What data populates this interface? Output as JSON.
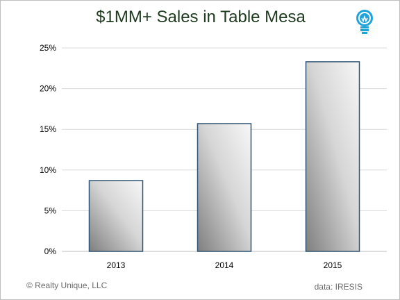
{
  "chart_data": {
    "type": "bar",
    "title": "$1MM+ Sales in Table Mesa",
    "categories": [
      "2013",
      "2014",
      "2015"
    ],
    "values": [
      8.7,
      15.7,
      23.3
    ],
    "ylim": [
      0,
      25
    ],
    "yticks": [
      0,
      5,
      10,
      15,
      20,
      25
    ],
    "ytick_labels": [
      "0%",
      "5%",
      "10%",
      "15%",
      "20%",
      "25%"
    ],
    "xlabel": "",
    "ylabel": "",
    "grid": true,
    "colors": {
      "bar_fill_light": "#f7f7f7",
      "bar_fill_dark": "#7f7f7f",
      "bar_border": "#2f5473",
      "grid": "#d9d9d9",
      "title": "#1f3b1f",
      "logo": "#1fa3db"
    }
  },
  "footer": {
    "copyright": "© Realty Unique, LLC",
    "source": "data:  IRESIS"
  },
  "logo": {
    "icon": "lightbulb-icon"
  }
}
